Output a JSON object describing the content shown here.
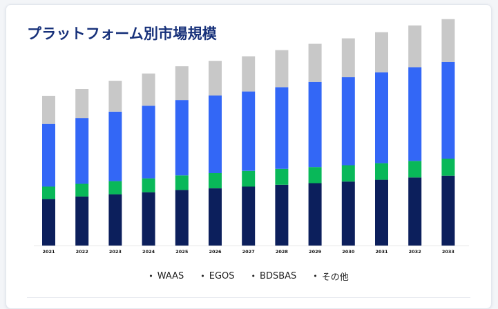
{
  "chart_data": {
    "type": "bar",
    "stacked": true,
    "title": "プラットフォーム別市場規模",
    "xlabel": "",
    "ylabel": "",
    "categories": [
      "2021",
      "2022",
      "2023",
      "2024",
      "2025",
      "2026",
      "2027",
      "2028",
      "2029",
      "2030",
      "2031",
      "2032",
      "2033"
    ],
    "ylim": [
      0,
      100
    ],
    "grid": false,
    "legend_position": "bottom",
    "series": [
      {
        "name": "WAAS",
        "color": "#0c1f5c",
        "values": [
          20.5,
          21.6,
          22.6,
          23.5,
          24.5,
          25.2,
          26.0,
          26.8,
          27.5,
          28.2,
          29.0,
          30.0,
          30.8
        ]
      },
      {
        "name": "EGOS",
        "color": "#09b859",
        "values": [
          5.5,
          5.6,
          5.8,
          6.1,
          6.4,
          6.7,
          6.9,
          7.0,
          7.1,
          7.2,
          7.3,
          7.3,
          7.5
        ]
      },
      {
        "name": "BDSBAS",
        "color": "#3367f6",
        "values": [
          27.6,
          29.0,
          30.6,
          32.0,
          33.2,
          34.2,
          35.0,
          36.0,
          37.5,
          38.8,
          40.0,
          41.3,
          42.6
        ]
      },
      {
        "name": "その他",
        "color": "#c8c8c8",
        "values": [
          12.4,
          12.8,
          13.6,
          14.2,
          14.9,
          15.3,
          15.5,
          16.3,
          16.8,
          17.1,
          17.7,
          18.4,
          18.9
        ]
      }
    ]
  }
}
